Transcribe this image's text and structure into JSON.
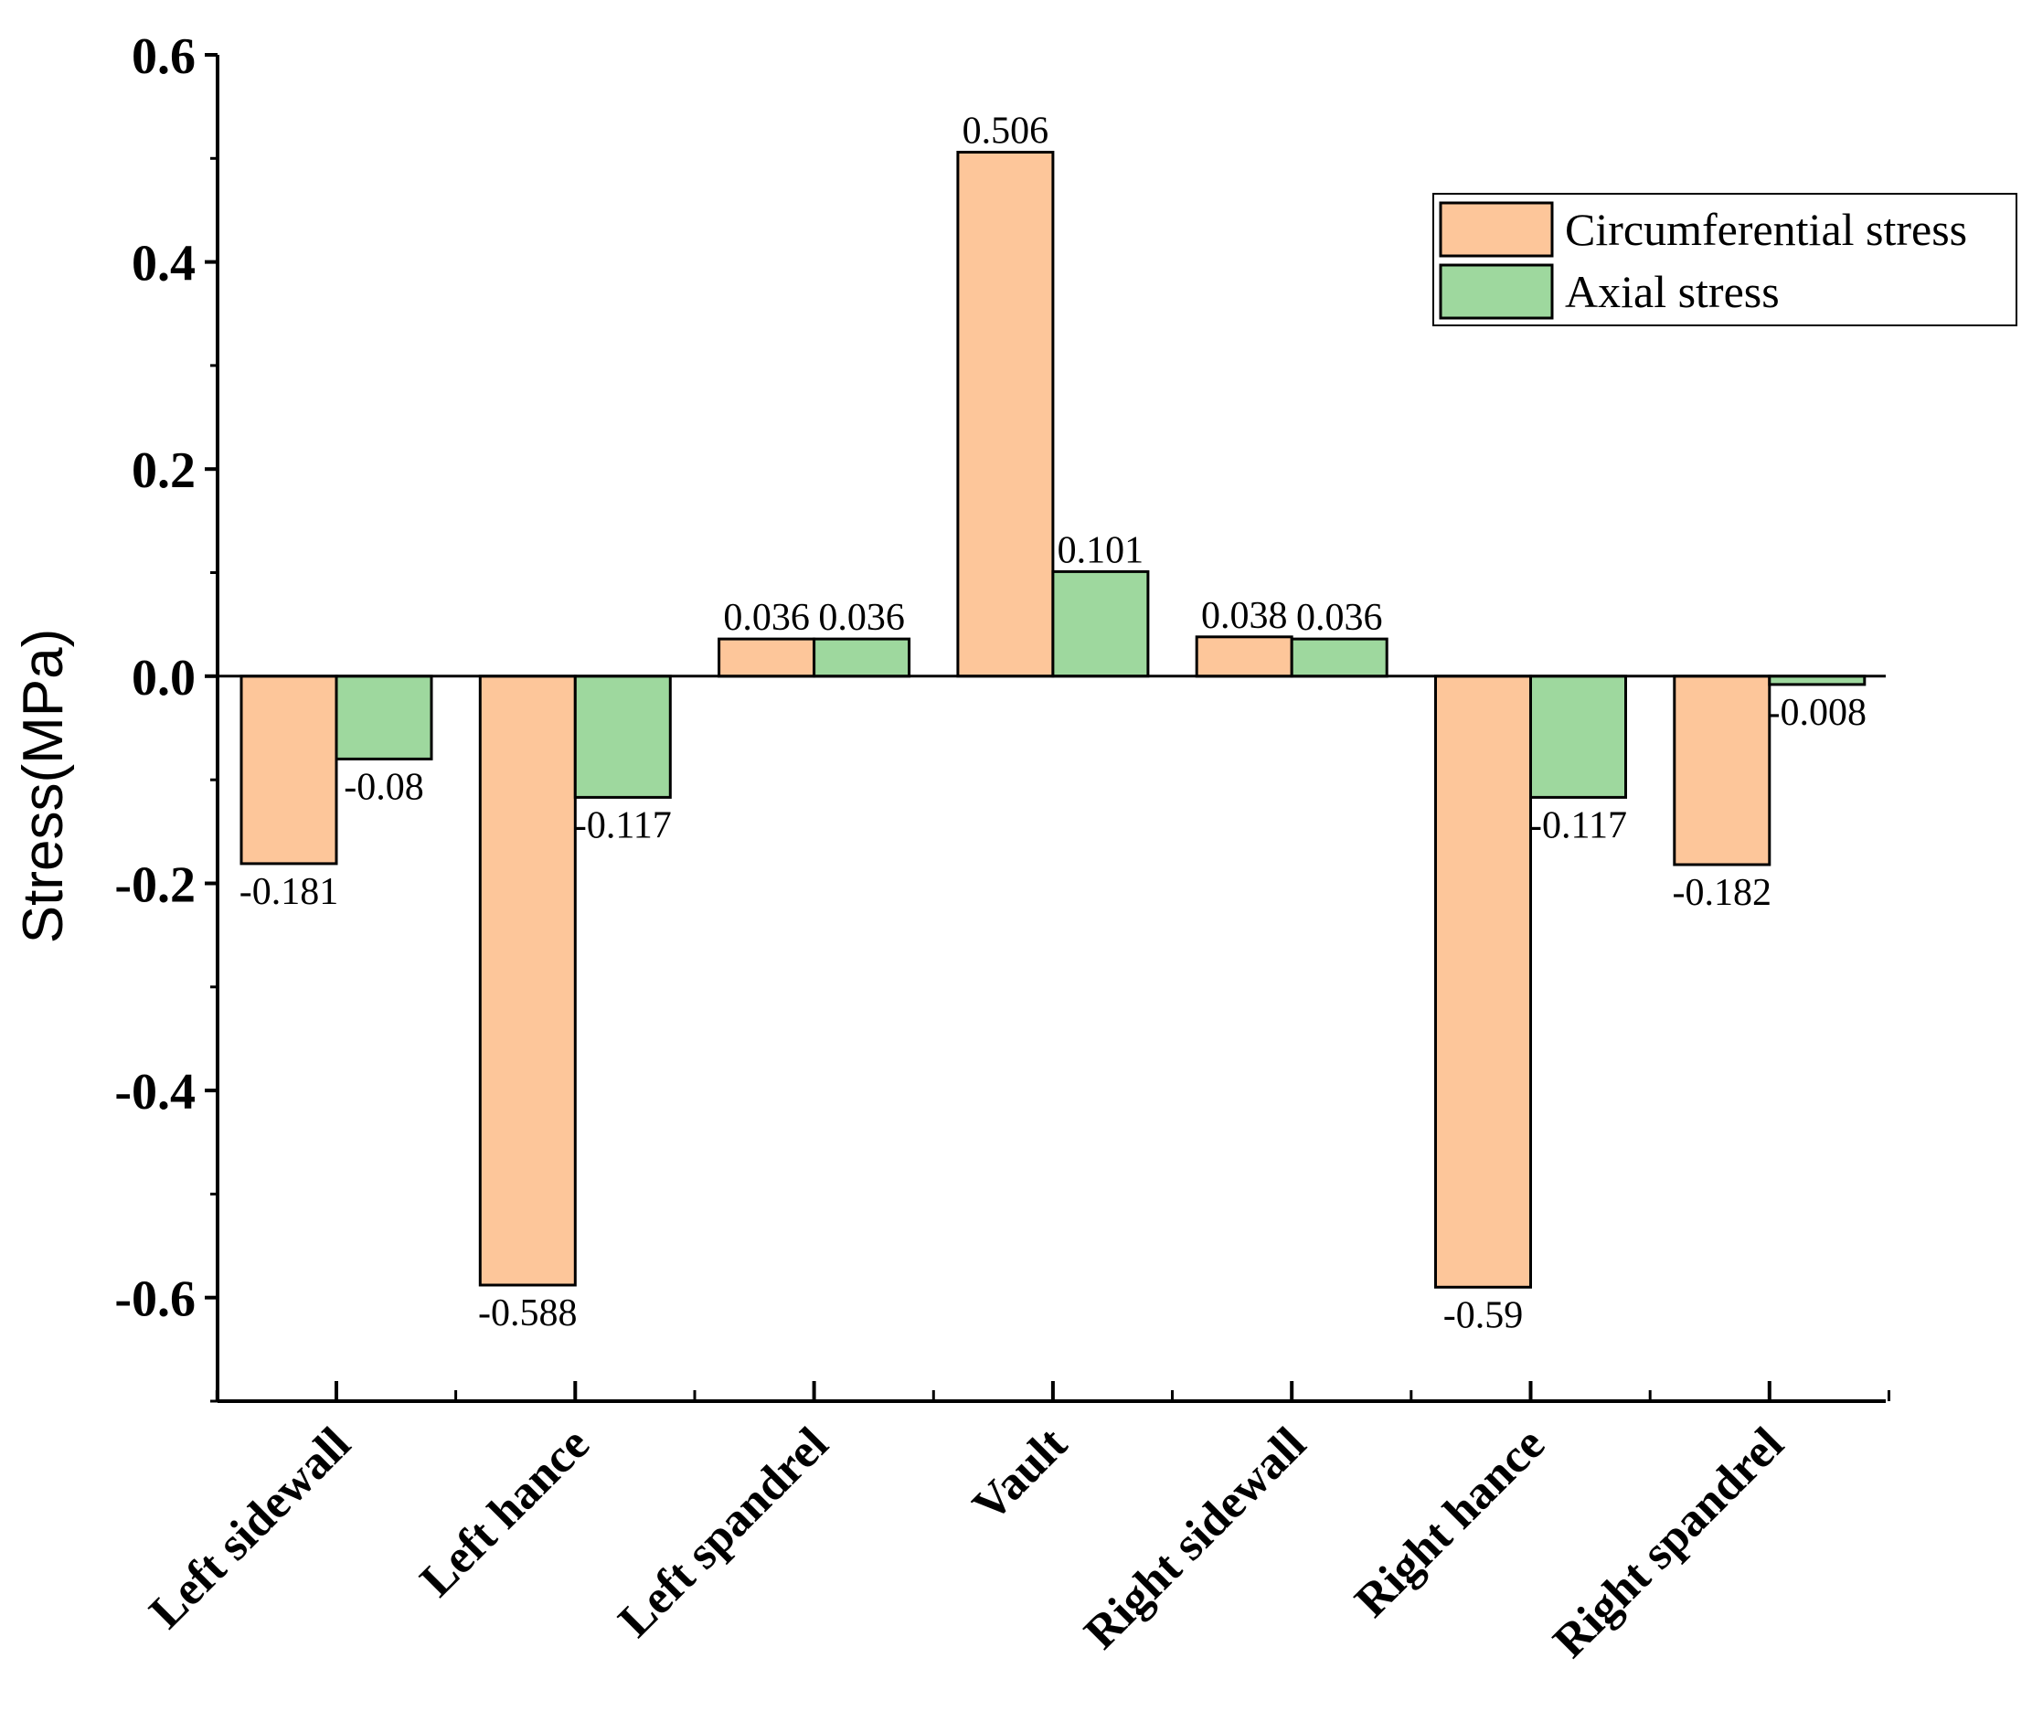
{
  "chart_data": {
    "type": "bar",
    "title": "",
    "xlabel": "",
    "ylabel": "Stress(MPa)",
    "ylim": [
      -0.7,
      0.6
    ],
    "yticks": [
      -0.6,
      -0.4,
      -0.2,
      0.0,
      0.2,
      0.4,
      0.6
    ],
    "ytick_labels": [
      "-0.6",
      "-0.4",
      "-0.2",
      "0.0",
      "0.2",
      "0.4",
      "0.6"
    ],
    "categories": [
      "Left sidewall",
      "Left hance",
      "Left spandrel",
      "Vault",
      "Right sidewall",
      "Right hance",
      "Right spandrel"
    ],
    "series": [
      {
        "name": "Circumferential stress",
        "color": "#FDC69A",
        "values": [
          -0.181,
          -0.588,
          0.036,
          0.506,
          0.038,
          -0.59,
          -0.182
        ],
        "labels": [
          "-0.181",
          "-0.588",
          "0.036",
          "0.506",
          "0.038",
          "-0.59",
          "-0.182"
        ]
      },
      {
        "name": "Axial stress",
        "color": "#9ED89E",
        "values": [
          -0.08,
          -0.117,
          0.036,
          0.101,
          0.036,
          -0.117,
          -0.008
        ],
        "labels": [
          "-0.08",
          "-0.117",
          "0.036",
          "0.101",
          "0.036",
          "-0.117",
          "-0.008"
        ]
      }
    ],
    "legend": {
      "position": "top-right",
      "entries": [
        "Circumferential stress",
        "Axial stress"
      ]
    },
    "grid": false
  }
}
